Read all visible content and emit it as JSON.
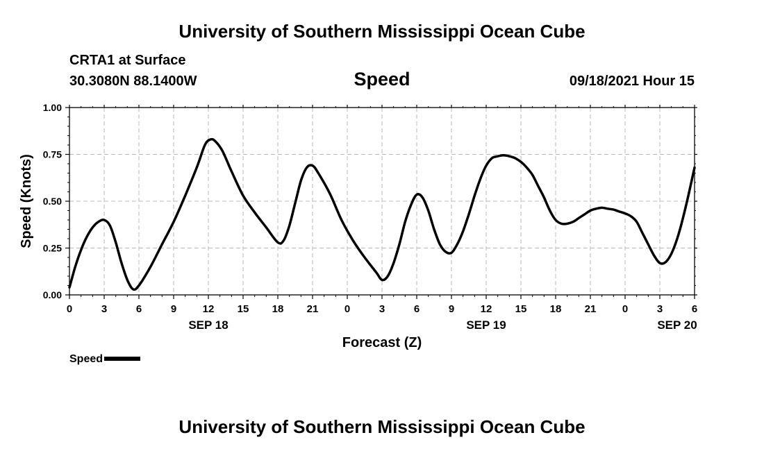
{
  "header": {
    "title": "University of Southern Mississippi Ocean Cube",
    "station": "CRTA1 at Surface",
    "coords": "30.3080N  88.1400W",
    "variable": "Speed",
    "datetime": "09/18/2021 Hour 15"
  },
  "footer": {
    "title": "University of Southern Mississippi Ocean Cube"
  },
  "legend": {
    "label": "Speed"
  },
  "chart_data": {
    "type": "line",
    "ylabel": "Speed (Knots)",
    "xlabel": "Forecast (Z)",
    "ylim": [
      0,
      1
    ],
    "xlim": [
      0,
      54
    ],
    "y_ticks": [
      {
        "value": 0,
        "label": "0.00"
      },
      {
        "value": 0.25,
        "label": "0.25"
      },
      {
        "value": 0.5,
        "label": "0.50"
      },
      {
        "value": 0.75,
        "label": "0.75"
      },
      {
        "value": 1,
        "label": "1.00"
      }
    ],
    "x_ticks": [
      {
        "value": 0,
        "label": "0"
      },
      {
        "value": 3,
        "label": "3"
      },
      {
        "value": 6,
        "label": "6"
      },
      {
        "value": 9,
        "label": "9"
      },
      {
        "value": 12,
        "label": "12"
      },
      {
        "value": 15,
        "label": "15"
      },
      {
        "value": 18,
        "label": "18"
      },
      {
        "value": 21,
        "label": "21"
      },
      {
        "value": 24,
        "label": "0"
      },
      {
        "value": 27,
        "label": "3"
      },
      {
        "value": 30,
        "label": "6"
      },
      {
        "value": 33,
        "label": "9"
      },
      {
        "value": 36,
        "label": "12"
      },
      {
        "value": 39,
        "label": "15"
      },
      {
        "value": 42,
        "label": "18"
      },
      {
        "value": 45,
        "label": "21"
      },
      {
        "value": 48,
        "label": "0"
      },
      {
        "value": 51,
        "label": "3"
      },
      {
        "value": 54,
        "label": "6"
      }
    ],
    "date_labels": [
      {
        "value": 12,
        "label": "SEP 18"
      },
      {
        "value": 36,
        "label": "SEP 19"
      },
      {
        "value": 52.5,
        "label": "SEP 20"
      }
    ],
    "grid": true,
    "series": [
      {
        "name": "Speed",
        "color": "#000000",
        "points": [
          [
            0,
            0.04
          ],
          [
            0.5,
            0.15
          ],
          [
            1,
            0.24
          ],
          [
            1.5,
            0.31
          ],
          [
            2,
            0.36
          ],
          [
            2.5,
            0.39
          ],
          [
            3,
            0.4
          ],
          [
            3.5,
            0.37
          ],
          [
            4,
            0.28
          ],
          [
            4.5,
            0.17
          ],
          [
            5,
            0.08
          ],
          [
            5.5,
            0.03
          ],
          [
            6,
            0.05
          ],
          [
            7,
            0.15
          ],
          [
            8,
            0.27
          ],
          [
            9,
            0.39
          ],
          [
            10,
            0.53
          ],
          [
            11,
            0.68
          ],
          [
            11.7,
            0.8
          ],
          [
            12.2,
            0.83
          ],
          [
            12.6,
            0.82
          ],
          [
            13.2,
            0.77
          ],
          [
            14,
            0.66
          ],
          [
            15,
            0.53
          ],
          [
            16,
            0.44
          ],
          [
            17,
            0.36
          ],
          [
            18,
            0.28
          ],
          [
            18.5,
            0.29
          ],
          [
            19,
            0.37
          ],
          [
            19.5,
            0.49
          ],
          [
            20,
            0.61
          ],
          [
            20.5,
            0.68
          ],
          [
            21,
            0.69
          ],
          [
            21.5,
            0.65
          ],
          [
            22.5,
            0.54
          ],
          [
            23.5,
            0.4
          ],
          [
            24.5,
            0.29
          ],
          [
            25.5,
            0.2
          ],
          [
            26.5,
            0.12
          ],
          [
            27,
            0.08
          ],
          [
            27.5,
            0.1
          ],
          [
            28,
            0.17
          ],
          [
            28.5,
            0.27
          ],
          [
            29,
            0.39
          ],
          [
            29.5,
            0.48
          ],
          [
            30,
            0.535
          ],
          [
            30.5,
            0.52
          ],
          [
            31,
            0.45
          ],
          [
            31.5,
            0.35
          ],
          [
            32,
            0.27
          ],
          [
            32.5,
            0.23
          ],
          [
            33,
            0.225
          ],
          [
            33.5,
            0.27
          ],
          [
            34,
            0.34
          ],
          [
            34.5,
            0.43
          ],
          [
            35,
            0.53
          ],
          [
            35.5,
            0.62
          ],
          [
            36,
            0.69
          ],
          [
            36.5,
            0.73
          ],
          [
            37,
            0.74
          ],
          [
            37.5,
            0.745
          ],
          [
            38,
            0.74
          ],
          [
            38.5,
            0.73
          ],
          [
            39,
            0.71
          ],
          [
            39.5,
            0.68
          ],
          [
            40,
            0.64
          ],
          [
            40.5,
            0.58
          ],
          [
            41,
            0.52
          ],
          [
            41.5,
            0.45
          ],
          [
            42,
            0.4
          ],
          [
            42.5,
            0.38
          ],
          [
            43,
            0.38
          ],
          [
            43.5,
            0.39
          ],
          [
            44,
            0.41
          ],
          [
            44.5,
            0.43
          ],
          [
            45,
            0.45
          ],
          [
            45.5,
            0.46
          ],
          [
            46,
            0.465
          ],
          [
            46.5,
            0.46
          ],
          [
            47,
            0.455
          ],
          [
            47.5,
            0.445
          ],
          [
            48,
            0.435
          ],
          [
            48.5,
            0.42
          ],
          [
            49,
            0.39
          ],
          [
            49.5,
            0.33
          ],
          [
            50,
            0.27
          ],
          [
            50.5,
            0.21
          ],
          [
            51,
            0.17
          ],
          [
            51.5,
            0.175
          ],
          [
            52,
            0.22
          ],
          [
            52.5,
            0.3
          ],
          [
            53,
            0.41
          ],
          [
            53.5,
            0.54
          ],
          [
            54,
            0.68
          ]
        ]
      }
    ]
  }
}
